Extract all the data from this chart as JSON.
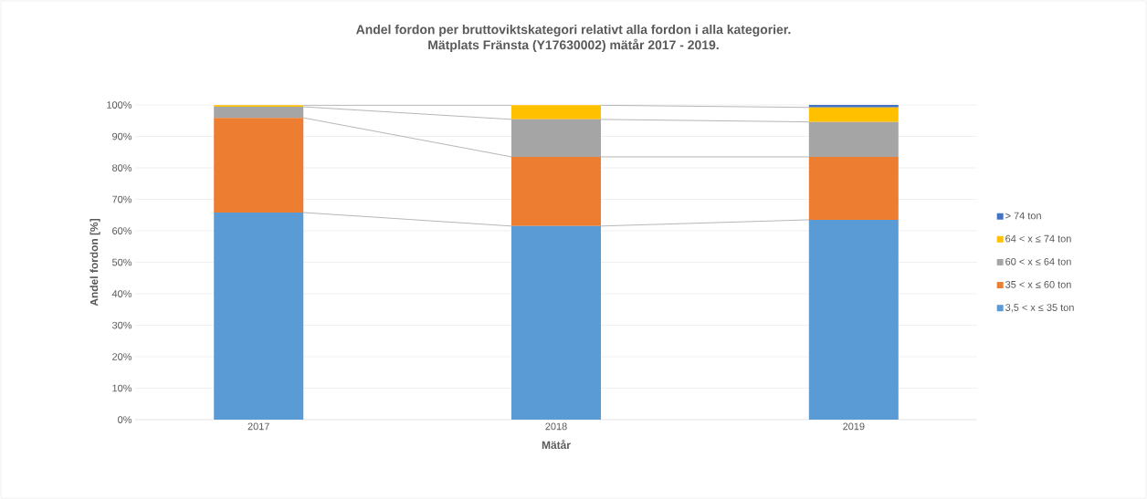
{
  "chart_data": {
    "type": "bar",
    "stacked": true,
    "title": "Andel fordon per bruttoviktskategori relativt alla fordon i alla kategorier.",
    "subtitle": "Mätplats Fränsta (Y17630002)  mätår 2017 - 2019.",
    "xlabel": "Mätår",
    "ylabel": "Andel fordon [%]",
    "categories": [
      "2017",
      "2018",
      "2019"
    ],
    "series": [
      {
        "name": "3,5 < x ≤ 35 ton",
        "color": "#5b9bd5",
        "values": [
          65.8,
          61.5,
          63.5
        ]
      },
      {
        "name": "35 < x ≤ 60 ton",
        "color": "#ed7d31",
        "values": [
          30.1,
          22.0,
          20.0
        ]
      },
      {
        "name": "60 < x ≤ 64 ton",
        "color": "#a5a5a5",
        "values": [
          3.5,
          11.9,
          11.1
        ]
      },
      {
        "name": "64 < x ≤ 74 ton",
        "color": "#ffc000",
        "values": [
          0.5,
          4.5,
          4.6
        ]
      },
      {
        "name": "> 74 ton",
        "color": "#4472c4",
        "values": [
          null,
          null,
          0.8
        ]
      }
    ],
    "ylim": [
      0,
      100
    ],
    "yticks": [
      {
        "value": 0,
        "label": "0%"
      },
      {
        "value": 10,
        "label": "10%"
      },
      {
        "value": 20,
        "label": "20%"
      },
      {
        "value": 30,
        "label": "30%"
      },
      {
        "value": 40,
        "label": "40%"
      },
      {
        "value": 50,
        "label": "50%"
      },
      {
        "value": 60,
        "label": "60%"
      },
      {
        "value": 70,
        "label": "70%"
      },
      {
        "value": 80,
        "label": "80%"
      },
      {
        "value": 90,
        "label": "90%"
      },
      {
        "value": 100,
        "label": "100%"
      }
    ],
    "grid": "y",
    "legend": "right"
  }
}
